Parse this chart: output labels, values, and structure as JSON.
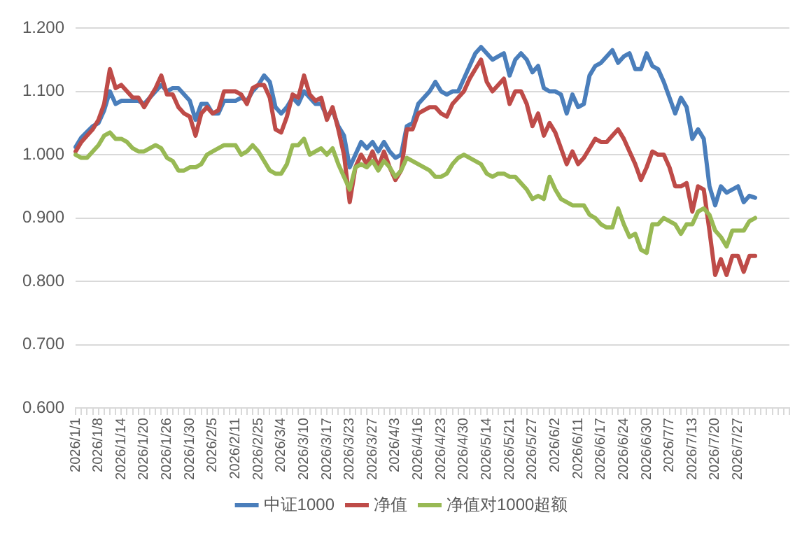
{
  "chart_data": {
    "type": "line",
    "categories": [
      "2026/1/1",
      null,
      null,
      null,
      "2026/1/8",
      null,
      null,
      null,
      "2026/1/14",
      null,
      null,
      null,
      "2026/1/20",
      null,
      null,
      null,
      "2026/1/26",
      null,
      null,
      null,
      "2026/1/30",
      null,
      null,
      null,
      "2026/2/5",
      null,
      null,
      null,
      "2026/2/11",
      null,
      null,
      null,
      "2026/2/25",
      null,
      null,
      null,
      "2026/3/4",
      null,
      null,
      null,
      "2026/3/10",
      null,
      null,
      null,
      "2026/3/17",
      null,
      null,
      null,
      "2026/3/23",
      null,
      null,
      null,
      "2026/3/27",
      null,
      null,
      null,
      "2026/4/3",
      null,
      null,
      null,
      "2026/4/16",
      null,
      null,
      null,
      "2026/4/23",
      null,
      null,
      null,
      "2026/4/30",
      null,
      null,
      null,
      "2026/5/14",
      null,
      null,
      null,
      "2026/5/21",
      null,
      null,
      null,
      "2026/5/27",
      null,
      null,
      null,
      "2026/6/2",
      null,
      null,
      null,
      "2026/6/11",
      null,
      null,
      null,
      "2026/6/17",
      null,
      null,
      null,
      "2026/6/24",
      null,
      null,
      null,
      "2026/6/30",
      null,
      null,
      null,
      "2026/7/7",
      null,
      null,
      null,
      "2026/7/13",
      null,
      null,
      null,
      "2026/7/20",
      null,
      null,
      null,
      "2026/7/27",
      null,
      null,
      null,
      null,
      null,
      null,
      null,
      null,
      null
    ],
    "series": [
      {
        "name": "中证1000",
        "color": "#4a7ebb",
        "values": [
          1.012,
          1.027,
          1.036,
          1.045,
          1.05,
          1.07,
          1.1,
          1.08,
          1.085,
          1.085,
          1.085,
          1.085,
          1.08,
          1.09,
          1.1,
          1.11,
          1.1,
          1.105,
          1.105,
          1.095,
          1.085,
          1.055,
          1.08,
          1.08,
          1.065,
          1.065,
          1.085,
          1.085,
          1.085,
          1.09,
          1.085,
          1.1,
          1.11,
          1.125,
          1.115,
          1.075,
          1.065,
          1.075,
          1.09,
          1.08,
          1.1,
          1.09,
          1.08,
          1.08,
          1.06,
          1.07,
          1.045,
          1.03,
          0.98,
          1.0,
          1.02,
          1.01,
          1.02,
          1.005,
          1.02,
          1.005,
          0.995,
          1.0,
          1.045,
          1.05,
          1.08,
          1.09,
          1.1,
          1.115,
          1.1,
          1.095,
          1.1,
          1.1,
          1.12,
          1.14,
          1.16,
          1.17,
          1.16,
          1.15,
          1.155,
          1.16,
          1.125,
          1.15,
          1.16,
          1.15,
          1.13,
          1.14,
          1.105,
          1.1,
          1.1,
          1.095,
          1.065,
          1.095,
          1.075,
          1.08,
          1.125,
          1.14,
          1.145,
          1.155,
          1.165,
          1.145,
          1.155,
          1.16,
          1.135,
          1.135,
          1.16,
          1.14,
          1.135,
          1.115,
          1.09,
          1.065,
          1.09,
          1.075,
          1.025,
          1.04,
          1.025,
          0.95,
          0.92,
          0.95,
          0.94,
          0.945,
          0.95,
          0.925,
          0.935,
          0.932,
          null,
          null,
          null,
          null,
          null,
          null
        ]
      },
      {
        "name": "净值",
        "color": "#be4b48",
        "values": [
          1.005,
          1.02,
          1.03,
          1.04,
          1.055,
          1.08,
          1.135,
          1.105,
          1.11,
          1.1,
          1.09,
          1.09,
          1.075,
          1.09,
          1.105,
          1.125,
          1.095,
          1.095,
          1.075,
          1.065,
          1.06,
          1.03,
          1.065,
          1.075,
          1.065,
          1.07,
          1.1,
          1.1,
          1.1,
          1.095,
          1.08,
          1.105,
          1.11,
          1.11,
          1.09,
          1.04,
          1.035,
          1.06,
          1.095,
          1.09,
          1.125,
          1.095,
          1.085,
          1.09,
          1.055,
          1.075,
          1.04,
          1.0,
          0.925,
          0.98,
          1.0,
          0.985,
          1.005,
          0.98,
          1.005,
          0.98,
          0.96,
          0.975,
          1.04,
          1.04,
          1.065,
          1.07,
          1.075,
          1.075,
          1.065,
          1.06,
          1.08,
          1.09,
          1.1,
          1.12,
          1.135,
          1.15,
          1.115,
          1.1,
          1.11,
          1.12,
          1.08,
          1.1,
          1.1,
          1.08,
          1.045,
          1.065,
          1.03,
          1.05,
          1.035,
          1.01,
          0.985,
          1.005,
          0.985,
          0.995,
          1.01,
          1.025,
          1.02,
          1.02,
          1.03,
          1.04,
          1.025,
          1.005,
          0.985,
          0.96,
          0.98,
          1.005,
          1.0,
          1.0,
          0.98,
          0.95,
          0.95,
          0.955,
          0.91,
          0.95,
          0.945,
          0.88,
          0.81,
          0.835,
          0.81,
          0.84,
          0.84,
          0.815,
          0.84,
          0.84,
          null,
          null,
          null,
          null,
          null,
          null
        ]
      },
      {
        "name": "净值对1000超额",
        "color": "#98b954",
        "values": [
          1.0,
          0.995,
          0.995,
          1.005,
          1.015,
          1.03,
          1.035,
          1.025,
          1.025,
          1.02,
          1.01,
          1.005,
          1.005,
          1.01,
          1.015,
          1.01,
          0.995,
          0.99,
          0.975,
          0.975,
          0.98,
          0.98,
          0.985,
          1.0,
          1.005,
          1.01,
          1.015,
          1.015,
          1.015,
          1.0,
          1.005,
          1.015,
          1.005,
          0.99,
          0.975,
          0.97,
          0.97,
          0.985,
          1.015,
          1.015,
          1.025,
          1.0,
          1.005,
          1.01,
          1.0,
          1.01,
          0.985,
          0.965,
          0.945,
          0.98,
          0.985,
          0.98,
          0.99,
          0.975,
          0.99,
          0.98,
          0.965,
          0.975,
          0.995,
          0.99,
          0.985,
          0.98,
          0.975,
          0.965,
          0.965,
          0.97,
          0.985,
          0.995,
          1.0,
          0.995,
          0.99,
          0.985,
          0.97,
          0.965,
          0.97,
          0.97,
          0.965,
          0.965,
          0.955,
          0.945,
          0.93,
          0.935,
          0.93,
          0.965,
          0.945,
          0.93,
          0.925,
          0.92,
          0.92,
          0.92,
          0.905,
          0.9,
          0.89,
          0.885,
          0.885,
          0.915,
          0.89,
          0.87,
          0.875,
          0.85,
          0.845,
          0.89,
          0.89,
          0.9,
          0.895,
          0.89,
          0.875,
          0.89,
          0.89,
          0.91,
          0.915,
          0.905,
          0.88,
          0.87,
          0.855,
          0.88,
          0.88,
          0.88,
          0.895,
          0.9,
          null,
          null,
          null,
          null,
          null,
          null
        ]
      }
    ],
    "ylim": [
      0.6,
      1.2
    ],
    "yticks": [
      {
        "value": 0.6,
        "label": "0.600"
      },
      {
        "value": 0.7,
        "label": "0.700"
      },
      {
        "value": 0.8,
        "label": "0.800"
      },
      {
        "value": 0.9,
        "label": "0.900"
      },
      {
        "value": 1.0,
        "label": "1.000"
      },
      {
        "value": 1.1,
        "label": "1.100"
      },
      {
        "value": 1.2,
        "label": "1.200"
      }
    ],
    "grid": "y",
    "legend": "bottom",
    "marker": "none",
    "line_style": "solid"
  }
}
